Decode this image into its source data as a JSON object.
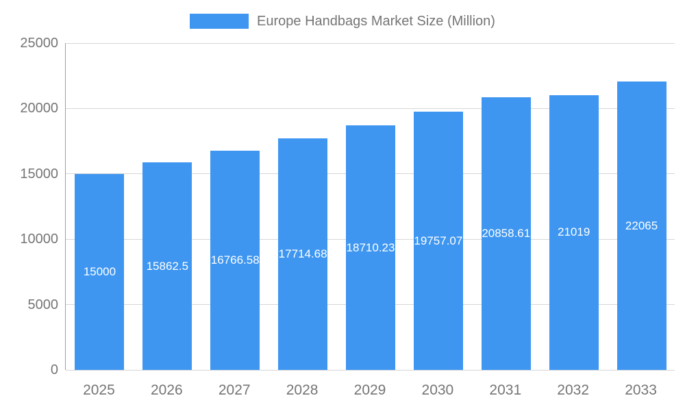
{
  "chart_data": {
    "type": "bar",
    "title": "Europe Handbags Market Size (Million)",
    "categories": [
      "2025",
      "2026",
      "2027",
      "2028",
      "2029",
      "2030",
      "2031",
      "2032",
      "2033"
    ],
    "values": [
      15000,
      15862.5,
      16766.58,
      17714.68,
      18710.23,
      19757.07,
      20858.61,
      21019,
      22065
    ],
    "bar_value_labels": [
      "15000",
      "15862.5",
      "16766.58",
      "17714.68",
      "18710.23",
      "19757.07",
      "20858.61",
      "21019",
      "22065"
    ],
    "xlabel": "",
    "ylabel": "",
    "ylim": [
      0,
      25000
    ],
    "yticks": [
      0,
      5000,
      10000,
      15000,
      20000,
      25000
    ],
    "grid": true,
    "legend_position": "top-center",
    "bar_color": "#3E96F0",
    "bar_value_label_color": "#ffffff",
    "axis_text_color": "#757575"
  }
}
